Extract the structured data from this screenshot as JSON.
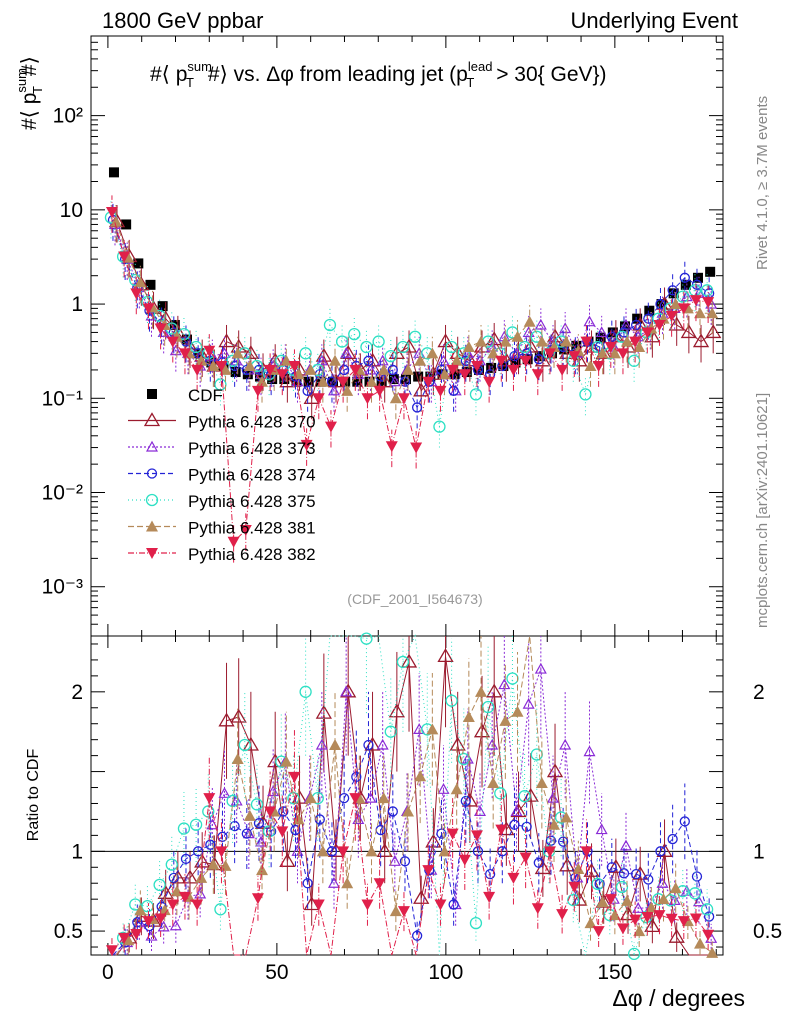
{
  "header": {
    "left": "1800 GeV ppbar",
    "right": "Underlying Event"
  },
  "side_text": {
    "rivet": "Rivet 4.1.0, ≥ 3.7M events",
    "mcplots": "mcplots.cern.ch [arXiv:2401.10621]"
  },
  "colors": {
    "CDF": "#000000",
    "370": "#9b1b2e",
    "373": "#8a2bd6",
    "374": "#2323d6",
    "375": "#2ee0c4",
    "381": "#b58a5a",
    "382": "#e0204a"
  },
  "chart_data": {
    "type": "scatter",
    "title": "#⟨ p_T^sum#⟩ vs. Δφ from leading jet (p_T^lead > 30{ GeV})",
    "title_parts": {
      "a": "#⟨ p",
      "a_sup": "sum",
      "a_sub": "T",
      "b": "#⟩ vs. Δφ from leading jet  (p",
      "b_sup": "lead",
      "b_sub": "T",
      "c": " > 30{ GeV})"
    },
    "ylabel_parts": {
      "a": "#⟨ p",
      "sup": "sum",
      "sub": "T",
      "b": "#⟩"
    },
    "ratio_ylabel": "Ratio to CDF",
    "xlabel": "Δφ / degrees",
    "analysis_id": "(CDF_2001_I564673)",
    "xlim": [
      -5,
      182
    ],
    "ylim_log": [
      0.0003,
      700
    ],
    "ratio_ylim": [
      0.35,
      2.35
    ],
    "x_ticks": [
      0,
      50,
      100,
      150
    ],
    "y_ticks": [
      {
        "value": 0.001,
        "label": "10⁻³"
      },
      {
        "value": 0.01,
        "label": "10⁻²"
      },
      {
        "value": 0.1,
        "label": "10⁻¹"
      },
      {
        "value": 1,
        "label": "1"
      },
      {
        "value": 10,
        "label": "10"
      },
      {
        "value": 100,
        "label": "10²"
      }
    ],
    "ratio_ticks": [
      {
        "value": 0.5,
        "label": "0.5"
      },
      {
        "value": 1,
        "label": "1"
      },
      {
        "value": 2,
        "label": "2"
      }
    ],
    "legend": [
      {
        "key": "CDF",
        "label": "CDF"
      },
      {
        "key": "370",
        "label": "Pythia 6.428 370"
      },
      {
        "key": "373",
        "label": "Pythia 6.428 373"
      },
      {
        "key": "374",
        "label": "Pythia 6.428 374"
      },
      {
        "key": "375",
        "label": "Pythia 6.428 375"
      },
      {
        "key": "381",
        "label": "Pythia 6.428 381"
      },
      {
        "key": "382",
        "label": "Pythia 6.428 382"
      }
    ],
    "x": [
      1.8,
      5.4,
      9,
      12.6,
      16.2,
      19.8,
      23.4,
      27,
      30.6,
      34.2,
      37.8,
      41.4,
      45,
      48.6,
      52.2,
      55.8,
      59.4,
      63,
      66.6,
      70.2,
      73.8,
      77.4,
      81,
      84.6,
      88.2,
      91.8,
      95.4,
      99,
      102.6,
      106.2,
      109.8,
      113.4,
      117,
      120.6,
      124.2,
      127.8,
      131.4,
      135,
      138.6,
      142.2,
      145.8,
      149.4,
      153,
      156.6,
      160.2,
      163.8,
      167.4,
      171,
      174.6,
      178.2
    ],
    "series": [
      {
        "key": "CDF",
        "name": "CDF",
        "values": [
          25,
          7,
          2.7,
          1.6,
          0.95,
          0.6,
          0.42,
          0.3,
          0.24,
          0.22,
          0.19,
          0.18,
          0.17,
          0.16,
          0.16,
          0.15,
          0.15,
          0.15,
          0.15,
          0.15,
          0.15,
          0.15,
          0.15,
          0.16,
          0.16,
          0.17,
          0.17,
          0.18,
          0.18,
          0.19,
          0.2,
          0.21,
          0.22,
          0.24,
          0.26,
          0.28,
          0.3,
          0.33,
          0.36,
          0.4,
          0.44,
          0.5,
          0.58,
          0.7,
          0.85,
          1.0,
          1.3,
          1.6,
          1.9,
          2.2
        ]
      },
      {
        "key": "370",
        "name": "Pythia 6.428 370",
        "values": [
          7.5,
          3.2,
          1.6,
          0.9,
          0.7,
          0.5,
          0.35,
          0.28,
          0.22,
          0.4,
          0.35,
          0.3,
          0.2,
          0.25,
          0.15,
          0.2,
          0.1,
          0.28,
          0.15,
          0.3,
          0.2,
          0.25,
          0.15,
          0.3,
          0.35,
          0.12,
          0.18,
          0.4,
          0.3,
          0.25,
          0.35,
          0.42,
          0.25,
          0.3,
          0.35,
          0.25,
          0.45,
          0.3,
          0.25,
          0.35,
          0.3,
          0.45,
          0.35,
          0.6,
          0.45,
          1.0,
          0.6,
          0.5,
          0.4,
          0.5
        ]
      },
      {
        "key": "373",
        "name": "Pythia 6.428 373",
        "values": [
          7,
          3,
          1.5,
          0.75,
          0.5,
          0.32,
          0.3,
          0.22,
          0.28,
          0.3,
          0.25,
          0.2,
          0.18,
          0.22,
          0.25,
          0.15,
          0.2,
          0.25,
          0.12,
          0.3,
          0.18,
          0.2,
          0.25,
          0.15,
          0.2,
          0.3,
          0.15,
          0.25,
          0.12,
          0.3,
          0.25,
          0.35,
          0.45,
          0.3,
          0.5,
          0.6,
          0.4,
          0.55,
          0.3,
          0.65,
          0.5,
          0.35,
          0.6,
          0.45,
          0.55,
          0.8,
          0.9,
          1.2,
          1.3,
          1.0
        ]
      },
      {
        "key": "374",
        "name": "Pythia 6.428 374",
        "values": [
          7.8,
          3.0,
          1.5,
          0.85,
          0.62,
          0.5,
          0.4,
          0.3,
          0.25,
          0.24,
          0.22,
          0.2,
          0.2,
          0.18,
          0.2,
          0.17,
          0.12,
          0.18,
          0.15,
          0.2,
          0.22,
          0.25,
          0.17,
          0.2,
          0.15,
          0.08,
          0.15,
          0.2,
          0.12,
          0.25,
          0.2,
          0.18,
          0.22,
          0.28,
          0.3,
          0.26,
          0.32,
          0.35,
          0.3,
          0.4,
          0.35,
          0.45,
          0.5,
          0.6,
          0.7,
          1.0,
          1.4,
          1.9,
          1.6,
          1.3
        ]
      },
      {
        "key": "375",
        "name": "Pythia 6.428 375",
        "values": [
          8.3,
          3.2,
          1.8,
          1.05,
          0.75,
          0.55,
          0.48,
          0.35,
          0.3,
          0.14,
          0.25,
          0.3,
          0.22,
          0.18,
          0.25,
          0.2,
          0.3,
          0.2,
          0.6,
          0.4,
          0.48,
          0.35,
          0.4,
          0.28,
          0.35,
          0.45,
          0.3,
          0.05,
          0.35,
          0.3,
          0.11,
          0.4,
          0.3,
          0.5,
          0.35,
          0.45,
          0.3,
          0.4,
          0.25,
          0.11,
          0.35,
          0.3,
          0.45,
          0.25,
          0.5,
          0.7,
          0.9,
          1.2,
          1.4,
          1.4
        ]
      },
      {
        "key": "381",
        "name": "Pythia 6.428 381",
        "values": [
          7.5,
          3.1,
          1.7,
          0.92,
          0.6,
          0.45,
          0.3,
          0.25,
          0.22,
          0.2,
          0.3,
          0.22,
          0.15,
          0.2,
          0.25,
          0.18,
          0.2,
          0.15,
          0.25,
          0.12,
          0.2,
          0.15,
          0.2,
          0.1,
          0.2,
          0.25,
          0.3,
          0.18,
          0.25,
          0.35,
          0.4,
          0.3,
          0.4,
          0.45,
          0.65,
          0.4,
          0.35,
          0.4,
          0.32,
          0.22,
          0.3,
          0.3,
          0.4,
          0.35,
          0.55,
          0.7,
          1.0,
          0.9,
          0.8,
          0.8
        ]
      },
      {
        "key": "382",
        "name": "Pythia 6.428 382",
        "values": [
          9.5,
          3.2,
          1.3,
          0.9,
          0.55,
          0.4,
          0.3,
          0.2,
          0.32,
          0.22,
          0.003,
          0.004,
          0.12,
          0.2,
          0.18,
          0.22,
          0.032,
          0.1,
          0.05,
          0.15,
          0.2,
          0.1,
          0.12,
          0.031,
          0.1,
          0.03,
          0.15,
          0.12,
          0.2,
          0.18,
          0.22,
          0.15,
          0.25,
          0.2,
          0.25,
          0.18,
          0.3,
          0.2,
          0.28,
          0.4,
          0.22,
          0.35,
          0.3,
          0.4,
          0.5,
          0.6,
          0.75,
          0.9,
          1.1,
          1.05
        ]
      }
    ]
  }
}
